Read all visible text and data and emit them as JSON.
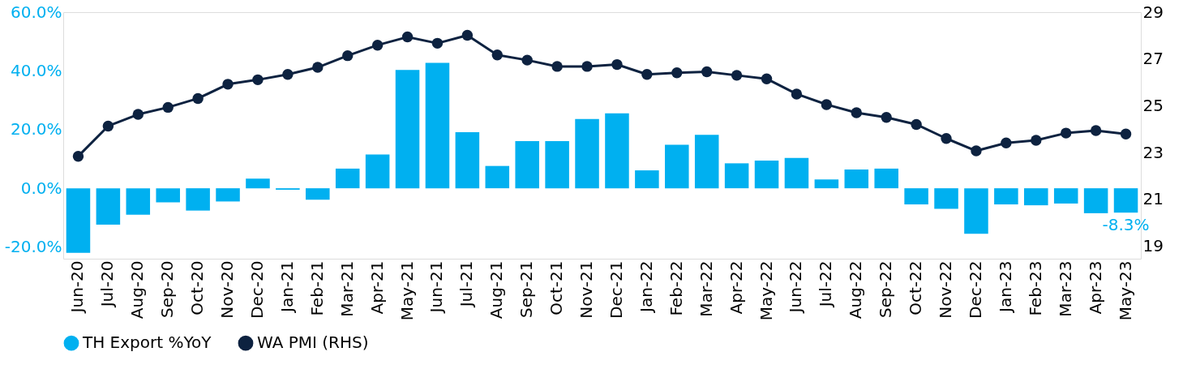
{
  "chart_data": {
    "type": "bar",
    "categories": [
      "Jun-20",
      "Jul-20",
      "Aug-20",
      "Sep-20",
      "Oct-20",
      "Nov-20",
      "Dec-20",
      "Jan-21",
      "Feb-21",
      "Mar-21",
      "Apr-21",
      "May-21",
      "Jun-21",
      "Jul-21",
      "Aug-21",
      "Sep-21",
      "Oct-21",
      "Nov-21",
      "Dec-21",
      "Jan-22",
      "Feb-22",
      "Mar-22",
      "Apr-22",
      "May-22",
      "Jun-22",
      "Jul-22",
      "Aug-22",
      "Sep-22",
      "Oct-22",
      "Nov-22",
      "Dec-22",
      "Jan-23",
      "Feb-23",
      "Mar-23",
      "Apr-23",
      "May-23"
    ],
    "series": [
      {
        "name": "TH Export %YoY",
        "color": "#00b0f0",
        "values": [
          -22,
          -12.4,
          -9,
          -4.8,
          -7.6,
          -4.5,
          3.3,
          -0.5,
          -3.9,
          6.7,
          11.5,
          40.3,
          42.7,
          19.1,
          7.6,
          16.1,
          16.1,
          23.6,
          25.5,
          6.1,
          14.8,
          18.2,
          8.5,
          9.4,
          10.3,
          3.0,
          6.4,
          6.7,
          -5.5,
          -7,
          -15.5,
          -5.5,
          -5.8,
          -5.2,
          -8.5,
          -8.3
        ],
        "value_labels": [
          null,
          null,
          null,
          null,
          null,
          null,
          null,
          null,
          null,
          null,
          null,
          null,
          null,
          null,
          null,
          null,
          null,
          null,
          null,
          null,
          null,
          null,
          null,
          null,
          null,
          null,
          null,
          null,
          null,
          null,
          null,
          null,
          null,
          null,
          null,
          "-8.3%"
        ]
      },
      {
        "name": "WA PMI (RHS)",
        "type": "line",
        "axis": "y2",
        "color": "#0d2240",
        "marker": "circle",
        "values": [
          22.84,
          24.13,
          24.63,
          24.93,
          25.31,
          25.92,
          26.11,
          26.34,
          26.64,
          27.14,
          27.59,
          27.94,
          27.67,
          28.01,
          27.17,
          26.95,
          26.68,
          26.68,
          26.76,
          26.34,
          26.41,
          26.45,
          26.3,
          26.15,
          25.5,
          25.05,
          24.7,
          24.5,
          24.2,
          23.6,
          23.07,
          23.41,
          23.52,
          23.83,
          23.94,
          23.79
        ]
      }
    ],
    "ylim": [
      -24,
      60
    ],
    "yticks": [
      {
        "value": -20,
        "label": "-20.0%"
      },
      {
        "value": 0,
        "label": "0.0%"
      },
      {
        "value": 20,
        "label": "20.0%"
      },
      {
        "value": 40,
        "label": "40.0%"
      },
      {
        "value": 60,
        "label": "60.0%"
      }
    ],
    "y2lim": [
      18.46,
      29
    ],
    "y2ticks": [
      19,
      21,
      23,
      25,
      27,
      29
    ],
    "grid": false,
    "legend": "bottom"
  }
}
